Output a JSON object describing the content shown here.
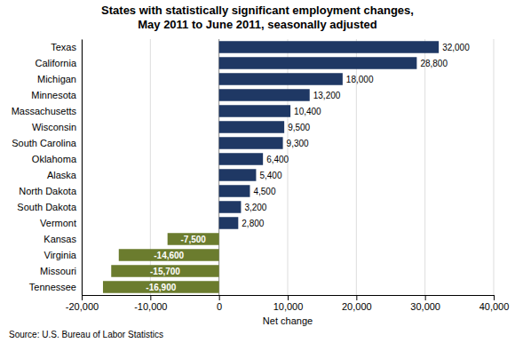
{
  "chart_data": {
    "type": "bar",
    "orientation": "horizontal",
    "title": "States with statistically significant employment changes,\nMay 2011 to June 2011, seasonally adjusted",
    "categories": [
      "Texas",
      "California",
      "Michigan",
      "Minnesota",
      "Massachusetts",
      "Wisconsin",
      "South Carolina",
      "Oklahoma",
      "Alaska",
      "North Dakota",
      "South Dakota",
      "Vermont",
      "Kansas",
      "Virginia",
      "Missouri",
      "Tennessee"
    ],
    "values": [
      32000,
      28800,
      18000,
      13200,
      10400,
      9500,
      9300,
      6400,
      5400,
      4500,
      3200,
      2800,
      -7500,
      -14600,
      -15700,
      -16900
    ],
    "value_labels": [
      "32,000",
      "28,800",
      "18,000",
      "13,200",
      "10,400",
      "9,500",
      "9,300",
      "6,400",
      "5,400",
      "4,500",
      "3,200",
      "2,800",
      "-7,500",
      "-14,600",
      "-15,700",
      "-16,900"
    ],
    "data_labels": true,
    "colors": [
      "#1f3864",
      "#1f3864",
      "#1f3864",
      "#1f3864",
      "#1f3864",
      "#1f3864",
      "#1f3864",
      "#1f3864",
      "#1f3864",
      "#1f3864",
      "#1f3864",
      "#1f3864",
      "#6b7c2e",
      "#6b7c2e",
      "#6b7c2e",
      "#6b7c2e"
    ],
    "xlabel": "Net change",
    "xlim": [
      -20000,
      40000
    ],
    "xticks": [
      {
        "value": -20000,
        "label": "-20,000"
      },
      {
        "value": -10000,
        "label": "-10,000"
      },
      0,
      {
        "value": 10000,
        "label": "10,000"
      },
      {
        "value": 20000,
        "label": "20,000"
      },
      {
        "value": 30000,
        "label": "30,000"
      },
      {
        "value": 40000,
        "label": "40,000"
      }
    ],
    "grid": true,
    "annotations": [
      "Source: U.S. Bureau of Labor Statistics"
    ]
  }
}
